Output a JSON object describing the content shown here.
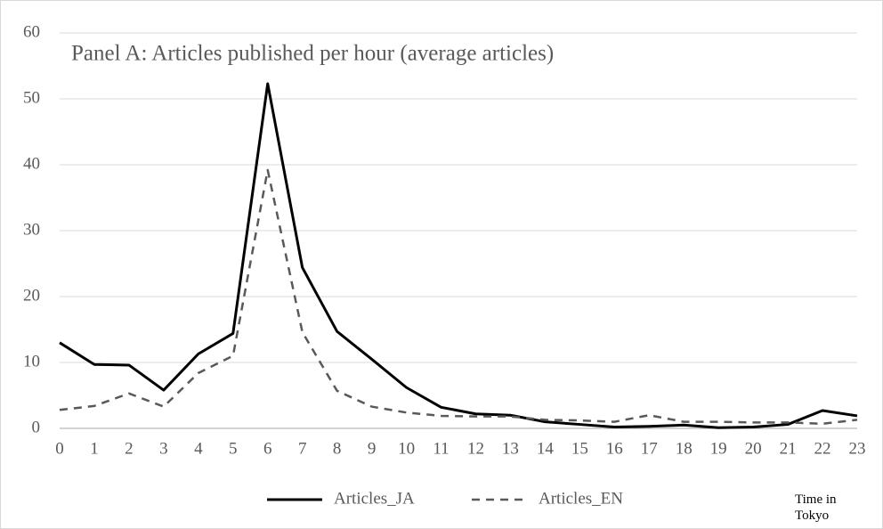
{
  "chart_data": {
    "type": "line",
    "title": "Panel A: Articles published per hour (average articles)",
    "x_label": "Time in Tokyo",
    "x": [
      0,
      1,
      2,
      3,
      4,
      5,
      6,
      7,
      8,
      9,
      10,
      11,
      12,
      13,
      14,
      15,
      16,
      17,
      18,
      19,
      20,
      21,
      22,
      23
    ],
    "xlim": [
      0,
      23
    ],
    "series": [
      {
        "name": "Articles_JA",
        "color": "#000000",
        "dash": "solid",
        "values": [
          13.0,
          9.7,
          9.6,
          5.8,
          11.3,
          14.4,
          52.3,
          24.4,
          14.7,
          10.5,
          6.2,
          3.2,
          2.2,
          2.0,
          1.0,
          0.6,
          0.2,
          0.3,
          0.5,
          0.1,
          0.2,
          0.6,
          2.7,
          1.9
        ]
      },
      {
        "name": "Articles_EN",
        "color": "#595959",
        "dash": "dashed",
        "values": [
          2.8,
          3.4,
          5.3,
          3.3,
          8.4,
          11.0,
          39.2,
          14.6,
          5.7,
          3.3,
          2.4,
          1.9,
          1.8,
          1.8,
          1.3,
          1.2,
          1.0,
          2.0,
          1.0,
          1.0,
          0.9,
          0.9,
          0.7,
          1.3
        ]
      }
    ],
    "ylim": [
      0,
      60
    ],
    "yticks": [
      0,
      10,
      20,
      30,
      40,
      50,
      60
    ],
    "grid": true,
    "legend": "bottom"
  }
}
